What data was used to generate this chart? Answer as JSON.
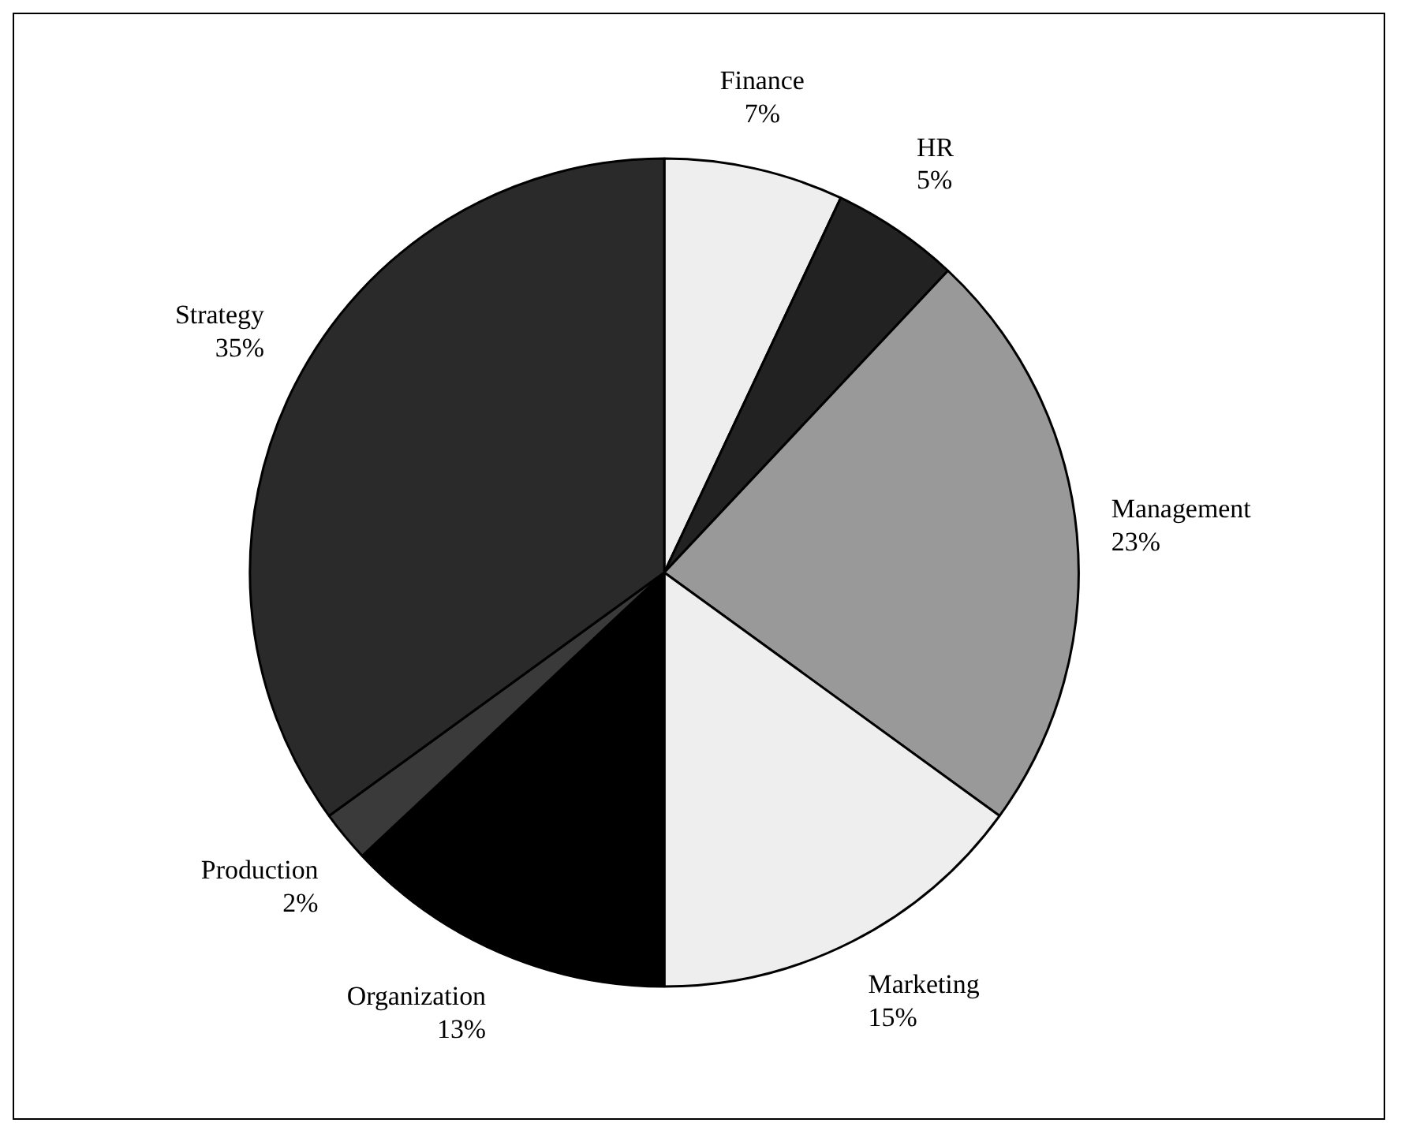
{
  "chart_data": {
    "type": "pie",
    "categories": [
      "Finance",
      "HR",
      "Management",
      "Marketing",
      "Organization",
      "Production",
      "Strategy"
    ],
    "values": [
      7,
      5,
      23,
      15,
      13,
      2,
      35
    ],
    "value_labels": [
      "7%",
      "5%",
      "23%",
      "15%",
      "13%",
      "2%",
      "35%"
    ],
    "colors": [
      "#eeeeee",
      "#222222",
      "#999999",
      "#eeeeee",
      "#000000",
      "#3a3a3a",
      "#2a2a2a"
    ],
    "legend": false
  }
}
